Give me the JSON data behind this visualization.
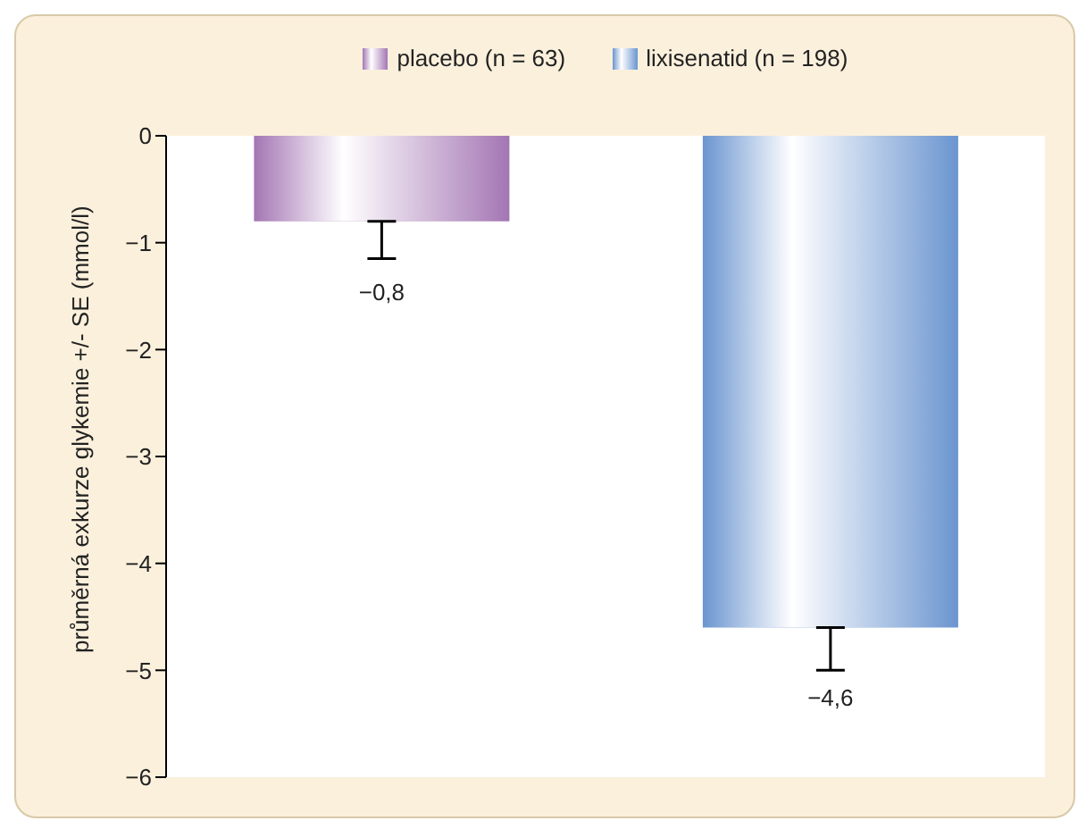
{
  "chart_data": {
    "type": "bar",
    "ylabel": "průměrná exkurze glykemie +/- SE (mmol/l)",
    "categories": [
      null
    ],
    "series": [
      {
        "name": "placebo (n = 63)",
        "color": "#a476b4",
        "values": [
          -0.8
        ],
        "errors": [
          [
            -1.15,
            -0.8
          ]
        ],
        "value_labels": [
          "−0,8"
        ]
      },
      {
        "name": "lixisenatid (n = 198)",
        "color": "#6b95d0",
        "values": [
          -4.6
        ],
        "errors": [
          [
            -5.0,
            -4.6
          ]
        ],
        "value_labels": [
          "−4,6"
        ]
      }
    ],
    "ylim": [
      -6,
      0
    ],
    "yticks": [
      {
        "value": -6,
        "label": "−6"
      },
      {
        "value": -5,
        "label": "−5"
      },
      {
        "value": -4,
        "label": "−4"
      },
      {
        "value": -3,
        "label": "−3"
      },
      {
        "value": -2,
        "label": "−2"
      },
      {
        "value": -1,
        "label": "−1"
      },
      {
        "value": 0,
        "label": "0"
      }
    ],
    "legend": "top"
  }
}
